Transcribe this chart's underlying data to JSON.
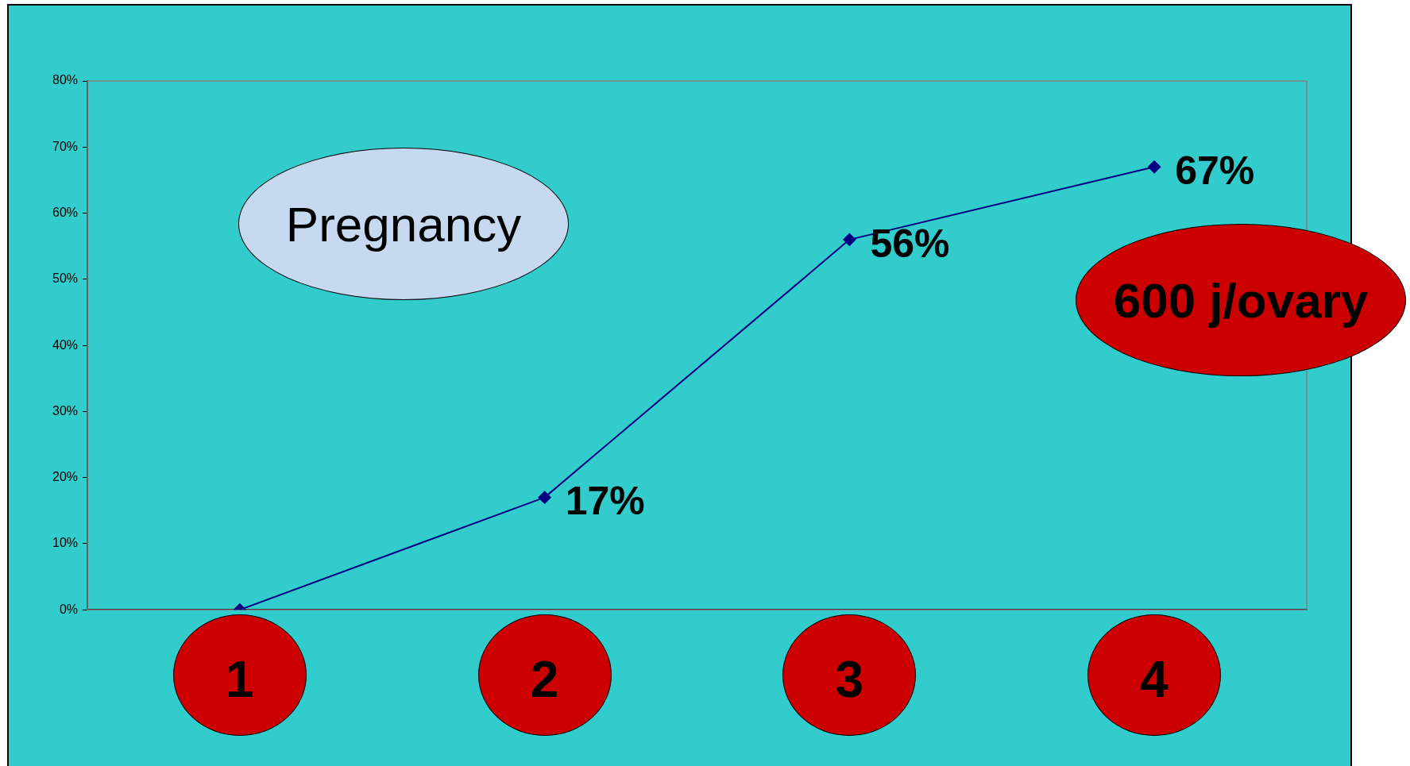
{
  "chart_data": {
    "type": "line",
    "categories": [
      "1",
      "2",
      "3",
      "4"
    ],
    "series": [
      {
        "color": "#000080",
        "values": [
          0,
          17,
          56,
          67
        ],
        "value_labels": [
          null,
          "17%",
          "56%",
          "67%"
        ]
      }
    ],
    "ylim": [
      0,
      80
    ],
    "yticks": [
      {
        "value": 0,
        "label": "0%"
      },
      {
        "value": 10,
        "label": "10%"
      },
      {
        "value": 20,
        "label": "20%"
      },
      {
        "value": 30,
        "label": "30%"
      },
      {
        "value": 40,
        "label": "40%"
      },
      {
        "value": 50,
        "label": "50%"
      },
      {
        "value": 60,
        "label": "60%"
      },
      {
        "value": 70,
        "label": "70%"
      },
      {
        "value": 80,
        "label": "80%"
      }
    ],
    "annotations": [
      "Pregnancy",
      "600 j/ovary"
    ],
    "grid": false,
    "legend": false,
    "marker": "diamond",
    "line_style": "solid"
  }
}
